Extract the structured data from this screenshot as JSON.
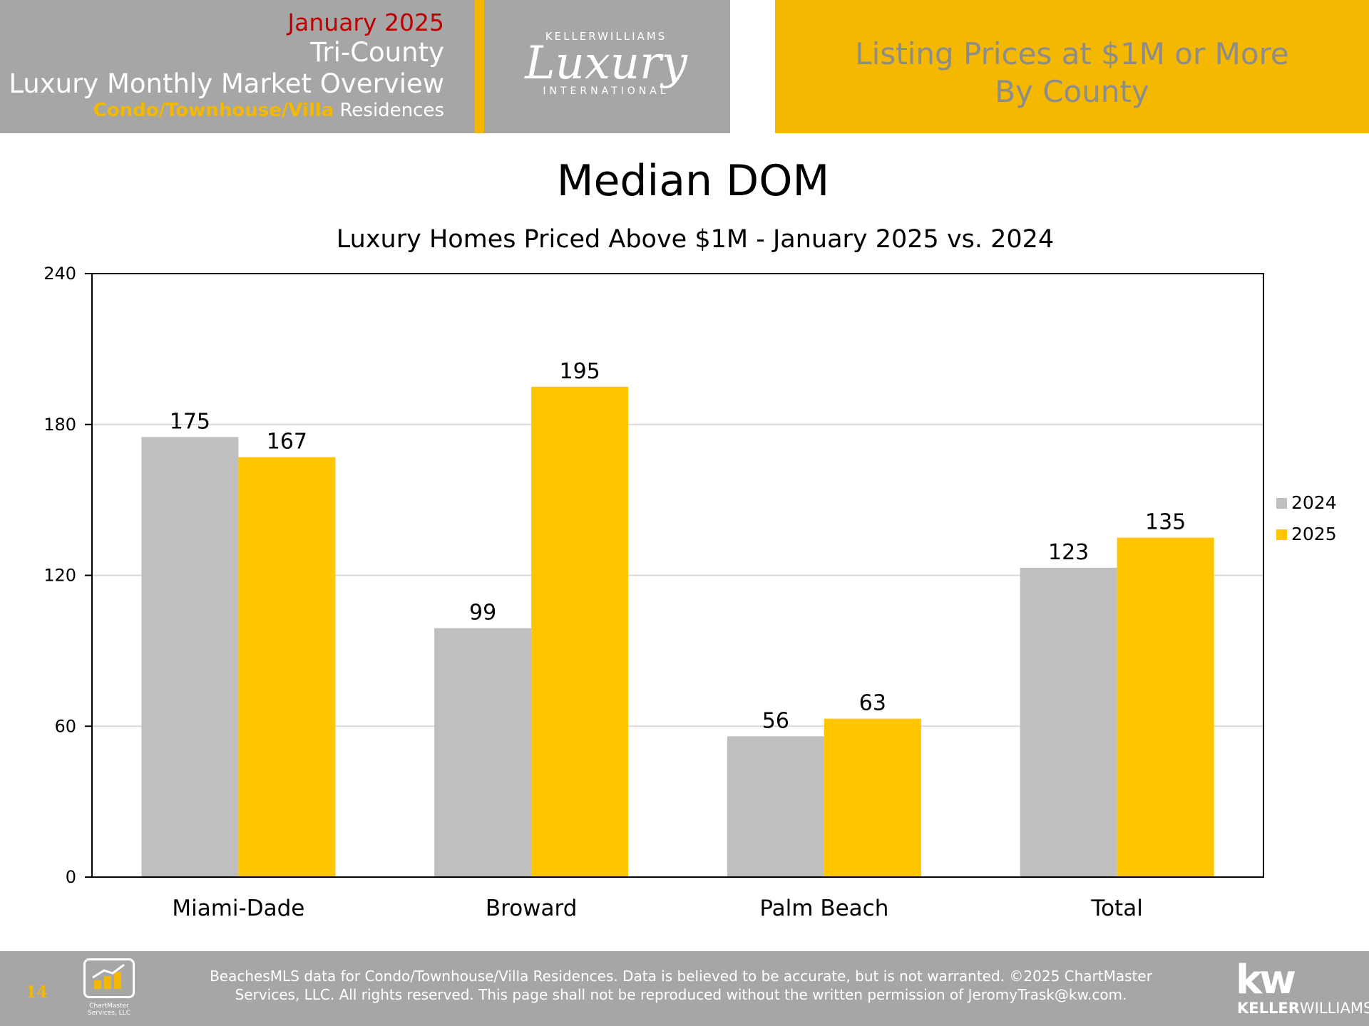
{
  "header": {
    "date": "January 2025",
    "region": "Tri-County",
    "report_title": "Luxury Monthly Market Overview",
    "property_type": "Condo/Townhouse/Villa",
    "property_suffix": "Residences",
    "logo_top": "KELLERWILLIAMS",
    "logo_script": "Luxury",
    "logo_bottom": "INTERNATIONAL",
    "right_title_line1": "Listing Prices at $1M or More",
    "right_title_line2": "By County"
  },
  "colors": {
    "accent": "#f4b800",
    "bar_2024": "#bfbfbf",
    "bar_2025": "#ffc600",
    "date_red": "#c00000"
  },
  "chart_data": {
    "type": "bar",
    "title": "Median DOM",
    "subtitle": "Luxury Homes Priced Above $1M - January 2025 vs. 2024",
    "categories": [
      "Miami-Dade",
      "Broward",
      "Palm Beach",
      "Total"
    ],
    "series": [
      {
        "name": "2024",
        "values": [
          175,
          99,
          56,
          123
        ]
      },
      {
        "name": "2025",
        "values": [
          167,
          195,
          63,
          135
        ]
      }
    ],
    "ylim": [
      0,
      240
    ],
    "yticks": [
      0,
      60,
      120,
      180,
      240
    ],
    "grid": true,
    "legend": "right"
  },
  "footer": {
    "page_number": "14",
    "chartmaster_label": "ChartMaster Services, LLC",
    "disclaimer_line1": "BeachesMLS data for Condo/Townhouse/Villa Residences.  Data is believed to be accurate, but is not warranted.   ©2025  ChartMaster",
    "disclaimer_line2": "Services, LLC.  All rights reserved. This page shall not be reproduced without the written permission of JeromyTrask@kw.com.",
    "kw_mark": "kw",
    "kw_word_bold": "KELLER",
    "kw_word_rest": "WILLIAMS."
  }
}
